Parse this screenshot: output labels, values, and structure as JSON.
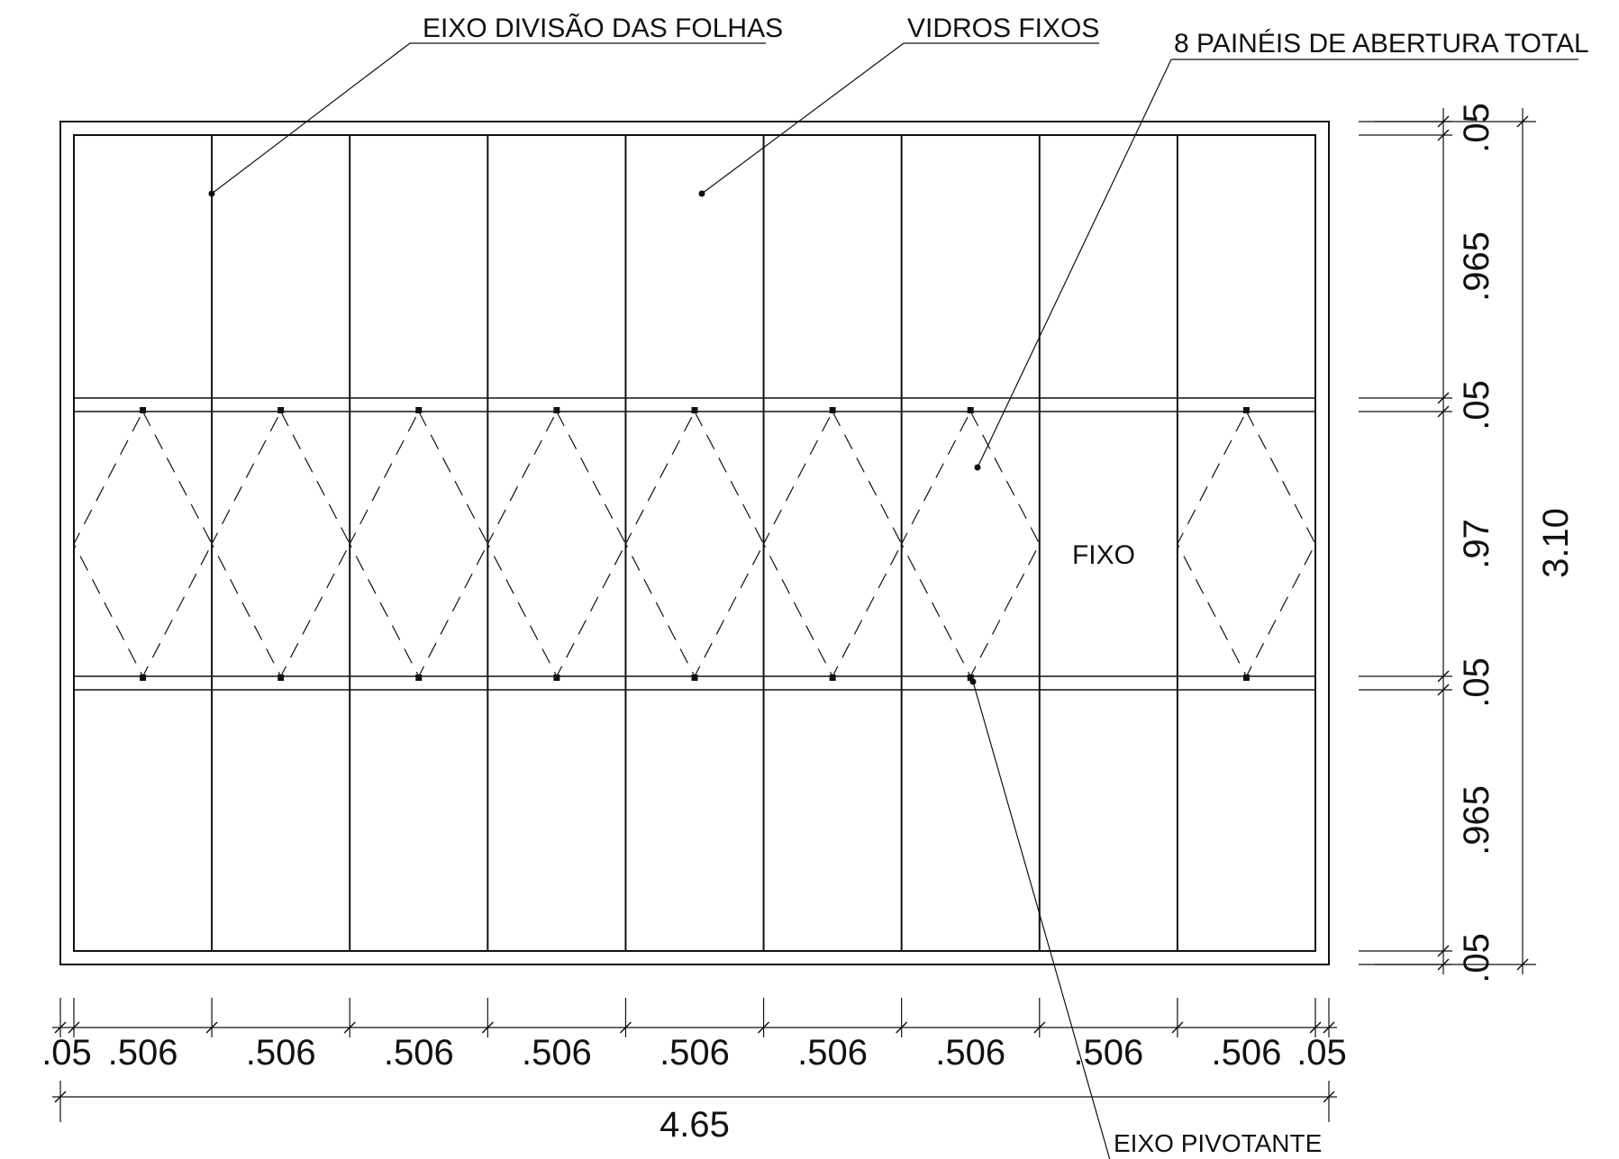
{
  "annotations": {
    "eixo_divisao": "EIXO DIVISÃO DAS FOLHAS",
    "vidros_fixos": "VIDROS FIXOS",
    "paineis": "8 PAINÉIS DE ABERTURA TOTAL",
    "eixo_pivotante": "EIXO PIVOTANTE",
    "fixo": "FIXO"
  },
  "dimensions": {
    "horizontal": [
      ".05",
      ".506",
      ".506",
      ".506",
      ".506",
      ".506",
      ".506",
      ".506",
      ".506",
      ".506",
      ".05"
    ],
    "total_width": "4.65",
    "vertical": [
      ".05",
      ".965",
      ".05",
      ".97",
      ".05",
      ".965",
      ".05"
    ],
    "total_height": "3.10"
  },
  "panels": {
    "count": 9,
    "pivoting": [
      true,
      true,
      true,
      true,
      true,
      true,
      true,
      false,
      true
    ]
  }
}
